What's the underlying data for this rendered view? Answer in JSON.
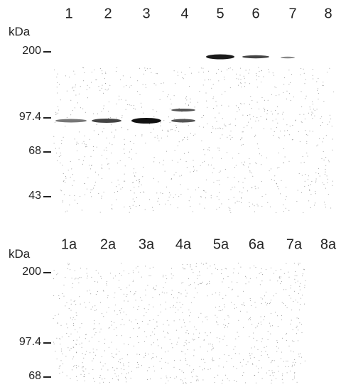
{
  "panels": [
    {
      "lanes": [
        "1",
        "2",
        "3",
        "4",
        "5",
        "6",
        "7",
        "8"
      ],
      "unit": "kDa",
      "markers": [
        "200",
        "97.4",
        "68",
        "43"
      ]
    },
    {
      "lanes": [
        "1a",
        "2a",
        "3a",
        "4a",
        "5a",
        "6a",
        "7a",
        "8a"
      ],
      "unit": "kDa",
      "markers": [
        "200",
        "97.4",
        "68"
      ]
    }
  ]
}
